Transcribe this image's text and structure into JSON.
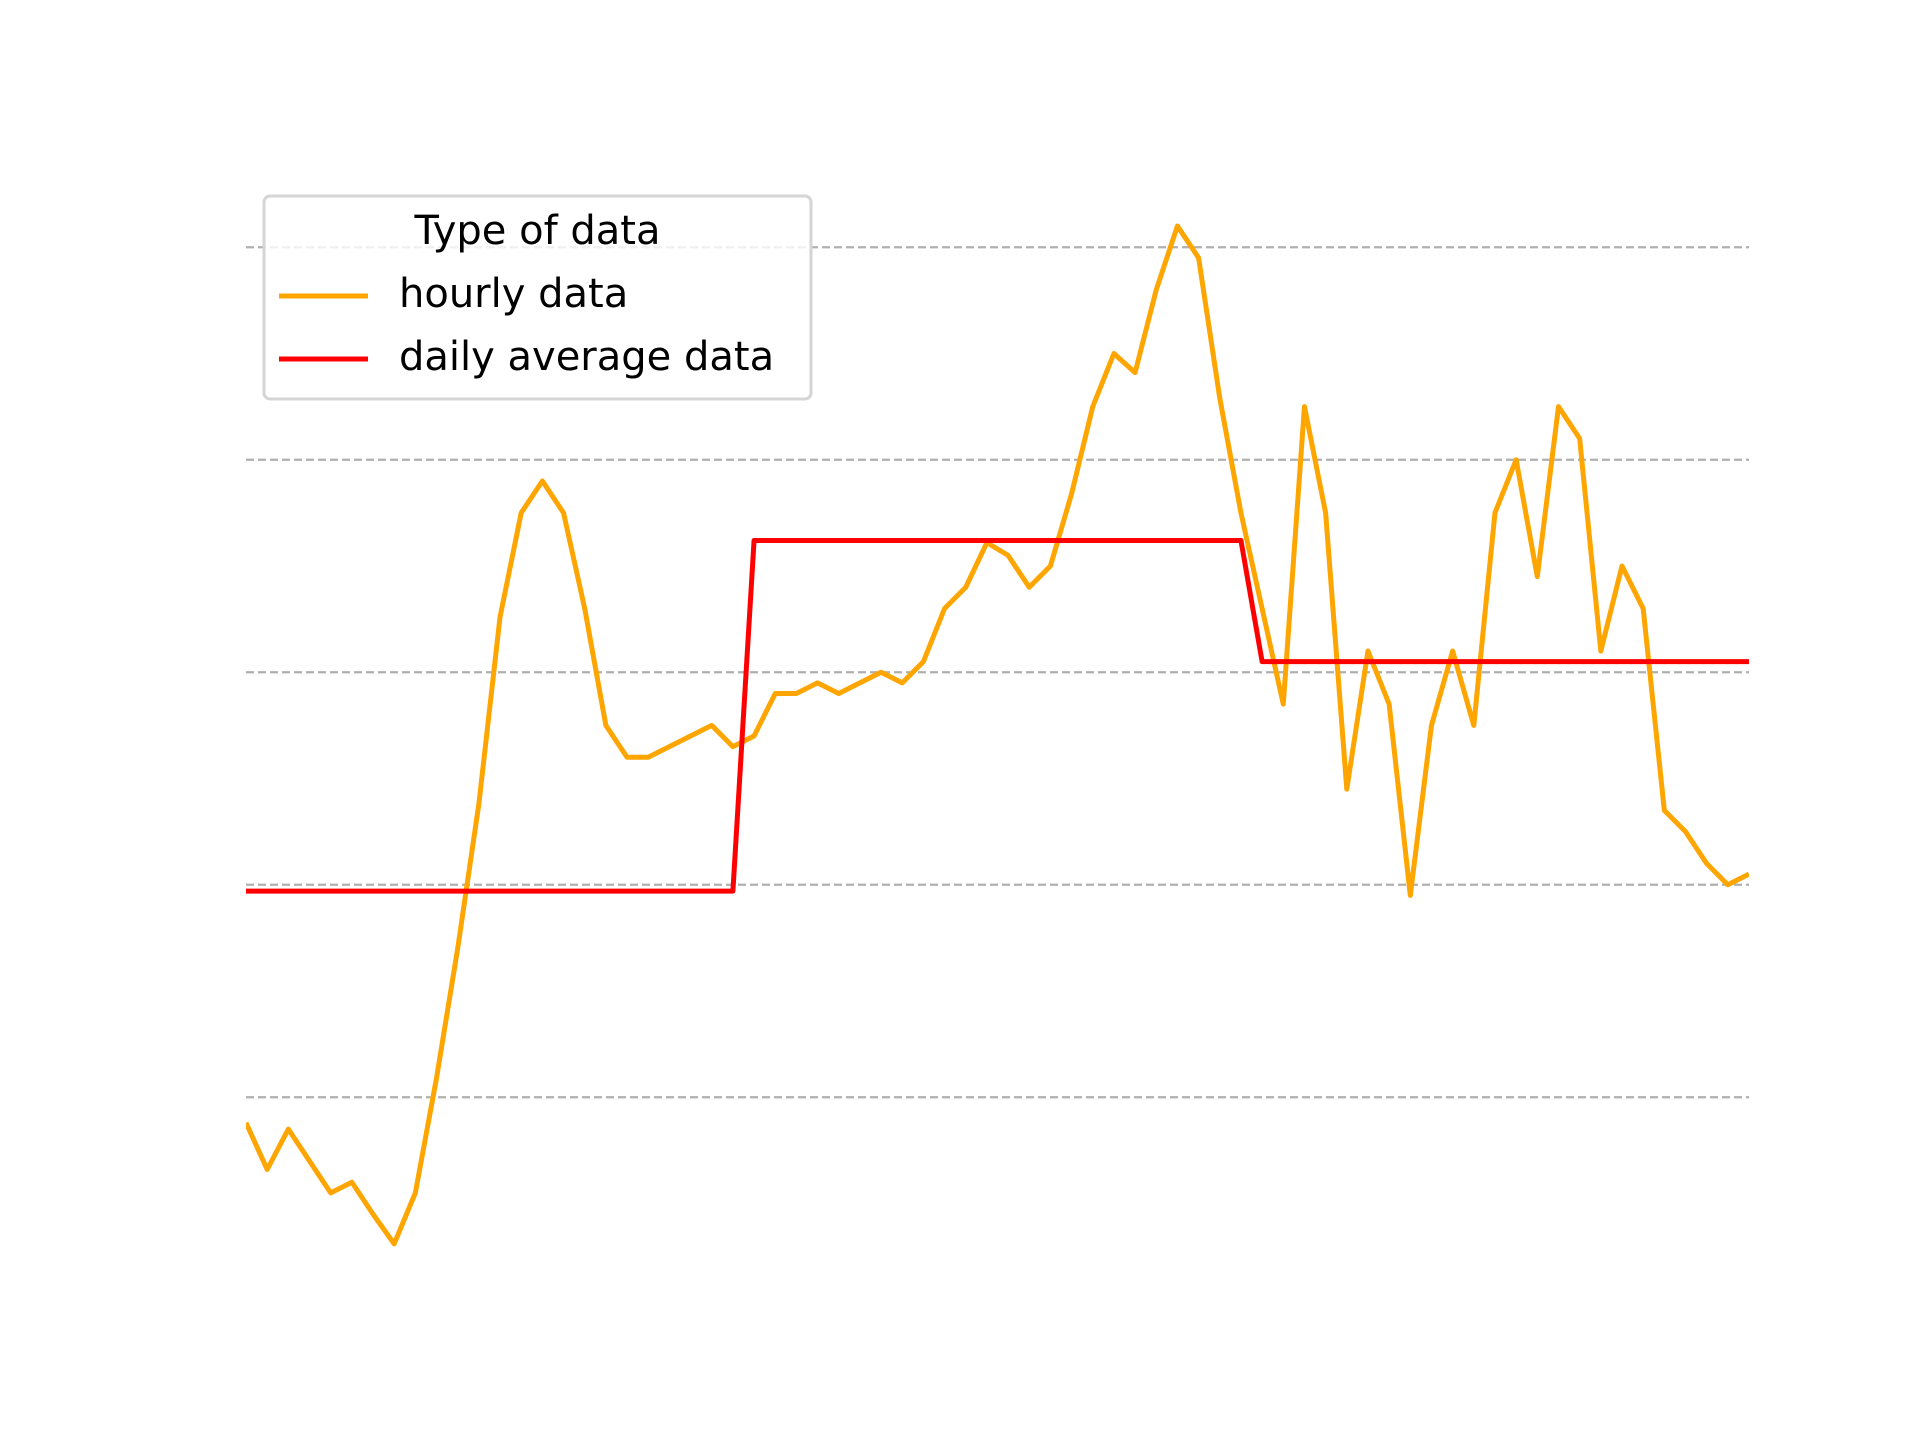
{
  "chart_data": {
    "type": "line",
    "legend_title": "Type of data",
    "legend": "upper left",
    "grid": true,
    "x": [
      0,
      1,
      2,
      3,
      4,
      5,
      6,
      7,
      8,
      9,
      10,
      11,
      12,
      13,
      14,
      15,
      16,
      17,
      18,
      19,
      20,
      21,
      22,
      23,
      24,
      25,
      26,
      27,
      28,
      29,
      30,
      31,
      32,
      33,
      34,
      35,
      36,
      37,
      38,
      39,
      40,
      41,
      42,
      43,
      44,
      45,
      46,
      47,
      48,
      49,
      50,
      51,
      52,
      53,
      54,
      55,
      56,
      57,
      58,
      59,
      60,
      61,
      62,
      63,
      64,
      65,
      66,
      67,
      68,
      69,
      70,
      71
    ],
    "xlim": [
      0,
      71
    ],
    "ylim": [
      -0.94,
      4.34
    ],
    "yticks": [
      0,
      1,
      2,
      3,
      4
    ],
    "series": [
      {
        "name": "hourly data",
        "color": "#ffa500",
        "values": [
          -0.12,
          -0.34,
          -0.15,
          -0.3,
          -0.45,
          -0.4,
          -0.55,
          -0.69,
          -0.45,
          0.09,
          0.7,
          1.38,
          2.26,
          2.75,
          2.9,
          2.75,
          2.3,
          1.75,
          1.6,
          1.6,
          1.65,
          1.7,
          1.75,
          1.65,
          1.7,
          1.9,
          1.9,
          1.95,
          1.9,
          1.95,
          2.0,
          1.95,
          2.05,
          2.3,
          2.4,
          2.61,
          2.55,
          2.4,
          2.5,
          2.84,
          3.25,
          3.5,
          3.41,
          3.8,
          4.1,
          3.95,
          3.29,
          2.75,
          2.3,
          1.85,
          3.25,
          2.75,
          1.45,
          2.1,
          1.85,
          0.95,
          1.75,
          2.1,
          1.75,
          2.75,
          3.0,
          2.45,
          3.25,
          3.1,
          2.1,
          2.5,
          2.3,
          1.35,
          1.25,
          1.1,
          1.0,
          1.05
        ]
      },
      {
        "name": "daily average data",
        "color": "#ff0000",
        "values": [
          0.97,
          0.97,
          0.97,
          0.97,
          0.97,
          0.97,
          0.97,
          0.97,
          0.97,
          0.97,
          0.97,
          0.97,
          0.97,
          0.97,
          0.97,
          0.97,
          0.97,
          0.97,
          0.97,
          0.97,
          0.97,
          0.97,
          0.97,
          0.97,
          2.62,
          2.62,
          2.62,
          2.62,
          2.62,
          2.62,
          2.62,
          2.62,
          2.62,
          2.62,
          2.62,
          2.62,
          2.62,
          2.62,
          2.62,
          2.62,
          2.62,
          2.62,
          2.62,
          2.62,
          2.62,
          2.62,
          2.62,
          2.62,
          2.05,
          2.05,
          2.05,
          2.05,
          2.05,
          2.05,
          2.05,
          2.05,
          2.05,
          2.05,
          2.05,
          2.05,
          2.05,
          2.05,
          2.05,
          2.05,
          2.05,
          2.05,
          2.05,
          2.05,
          2.05,
          2.05,
          2.05,
          2.05
        ]
      }
    ]
  }
}
